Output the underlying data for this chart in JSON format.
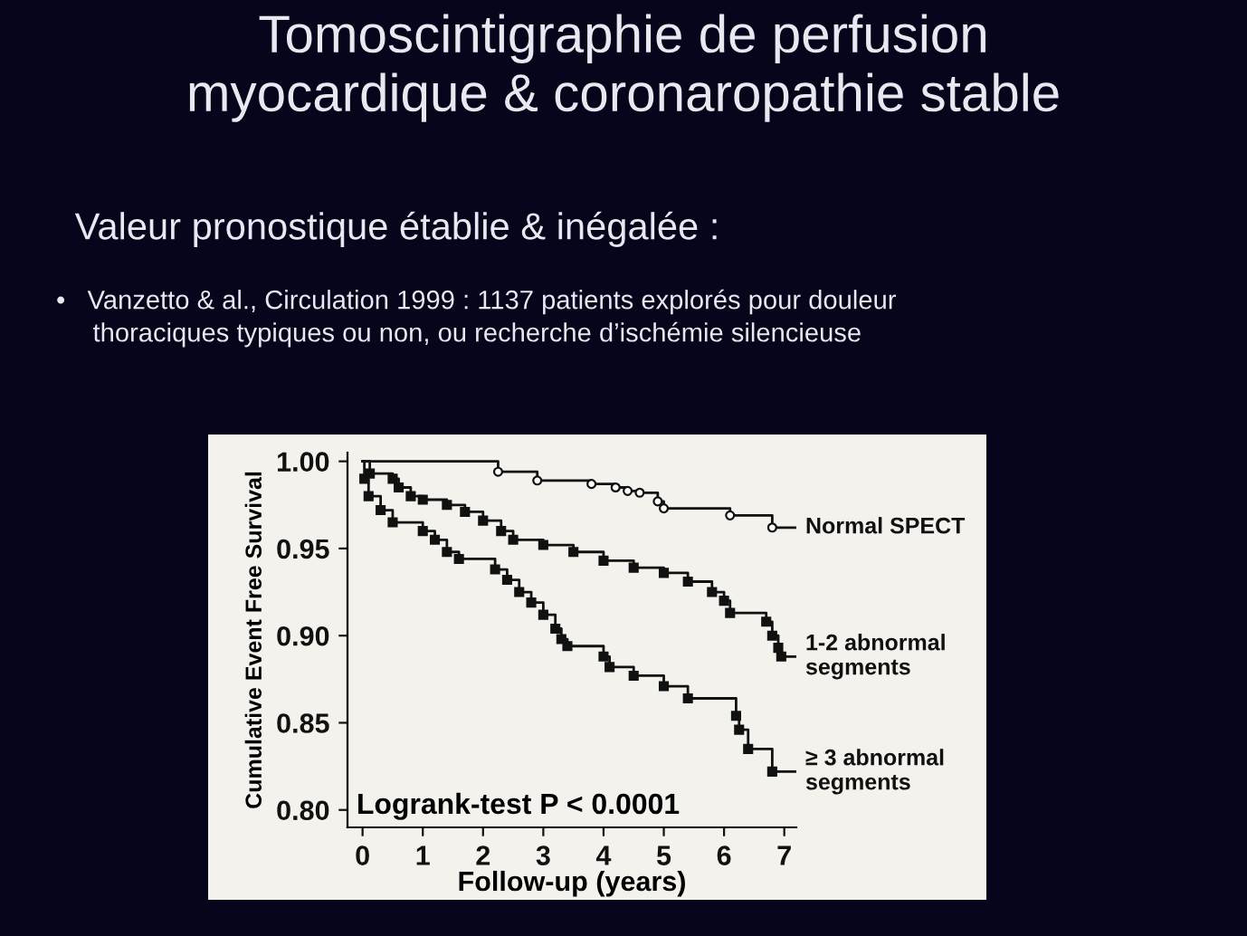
{
  "chart_data": {
    "type": "step",
    "title": "Tomoscintigraphie de perfusion\nmyocardique & coronaropathie stable",
    "subtitle": "Valeur pronostique établie & inégalée :",
    "annotations": [
      "•   Vanzetto & al., Circulation 1999 : 1137 patients explorés pour douleur\n     thoraciques typiques ou non, ou recherche d’ischémie silencieuse",
      "Logrank-test P < 0.0001"
    ],
    "xlabel": "Follow-up (years)",
    "ylabel": "Cumulative Event Free Survival",
    "xlim": [
      -0.25,
      7.2
    ],
    "ylim": [
      0.79,
      1.005
    ],
    "xticks": [
      0,
      1,
      2,
      3,
      4,
      5,
      6,
      7
    ],
    "yticks": [
      {
        "value": 0.8,
        "label": "0.80"
      },
      {
        "value": 0.85,
        "label": "0.85"
      },
      {
        "value": 0.9,
        "label": "0.90"
      },
      {
        "value": 0.95,
        "label": "0.95"
      },
      {
        "value": 1.0,
        "label": "1.00"
      }
    ],
    "grid": false,
    "legend": false,
    "line_style": "solid",
    "series": [
      {
        "name": "Normal SPECT",
        "color": "#111111",
        "marker": "circle",
        "x": [
          0,
          2.25,
          2.9,
          3.8,
          4.2,
          4.4,
          4.6,
          4.9,
          5.0,
          6.1,
          6.8,
          7.2
        ],
        "values": [
          1.0,
          0.994,
          0.989,
          0.987,
          0.985,
          0.983,
          0.982,
          0.977,
          0.973,
          0.969,
          0.962,
          0.962
        ]
      },
      {
        "name": "1-2 abnormal\nsegments",
        "color": "#111111",
        "marker": "square",
        "x": [
          0,
          0.12,
          0.5,
          0.6,
          0.8,
          1.0,
          1.4,
          1.7,
          2.0,
          2.3,
          2.5,
          3.0,
          3.5,
          4.0,
          4.5,
          5.0,
          5.4,
          5.8,
          6.0,
          6.1,
          6.7,
          6.8,
          6.9,
          6.95,
          7.2
        ],
        "values": [
          1.0,
          0.993,
          0.99,
          0.985,
          0.98,
          0.978,
          0.975,
          0.971,
          0.966,
          0.96,
          0.955,
          0.952,
          0.948,
          0.943,
          0.939,
          0.936,
          0.931,
          0.925,
          0.92,
          0.913,
          0.908,
          0.9,
          0.893,
          0.888,
          0.888
        ]
      },
      {
        "name": "≥ 3 abnormal\nsegments",
        "color": "#111111",
        "marker": "square",
        "x": [
          0,
          0.03,
          0.1,
          0.3,
          0.5,
          1.0,
          1.2,
          1.4,
          1.6,
          2.2,
          2.4,
          2.6,
          2.8,
          3.0,
          3.2,
          3.3,
          3.4,
          4.0,
          4.1,
          4.5,
          5.0,
          5.4,
          6.2,
          6.25,
          6.4,
          6.8,
          7.2
        ],
        "values": [
          1.0,
          0.99,
          0.98,
          0.972,
          0.965,
          0.96,
          0.955,
          0.948,
          0.944,
          0.938,
          0.932,
          0.925,
          0.919,
          0.912,
          0.904,
          0.898,
          0.894,
          0.888,
          0.882,
          0.877,
          0.871,
          0.864,
          0.854,
          0.846,
          0.835,
          0.822,
          0.822
        ]
      }
    ]
  }
}
